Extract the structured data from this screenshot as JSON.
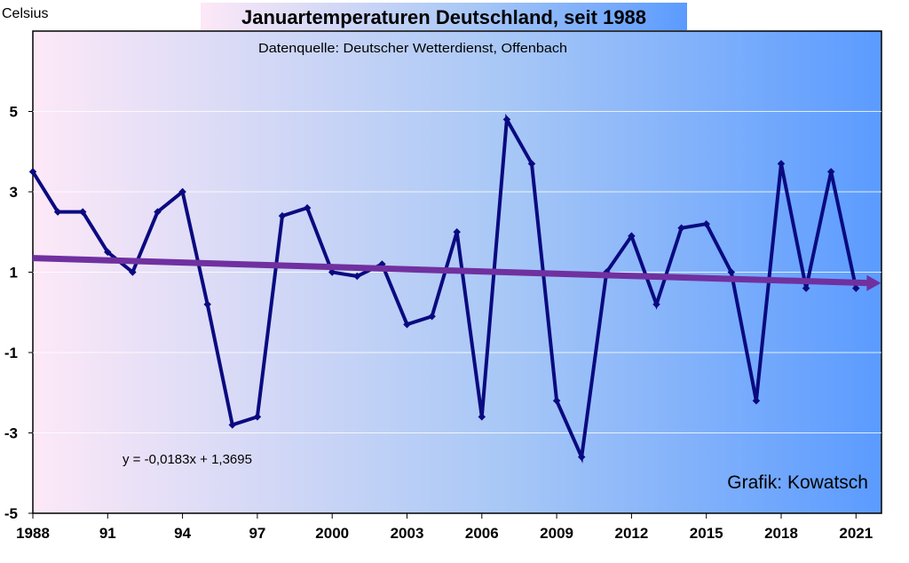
{
  "chart_data": {
    "type": "line",
    "title": "Januartemperaturen Deutschland, seit 1988",
    "subtitle": "Datenquelle: Deutscher Wetterdienst, Offenbach",
    "ylabel": "Celsius",
    "xlabel": "",
    "ylim": [
      -5,
      7
    ],
    "xlim": [
      1988,
      2022
    ],
    "y_ticks": [
      -5,
      -3,
      -1,
      1,
      3,
      5
    ],
    "x_ticks": [
      {
        "year": 1988,
        "label": "1988"
      },
      {
        "year": 1991,
        "label": "91"
      },
      {
        "year": 1994,
        "label": "94"
      },
      {
        "year": 1997,
        "label": "97"
      },
      {
        "year": 2000,
        "label": "2000"
      },
      {
        "year": 2003,
        "label": "2003"
      },
      {
        "year": 2006,
        "label": "2006"
      },
      {
        "year": 2009,
        "label": "2009"
      },
      {
        "year": 2012,
        "label": "2012"
      },
      {
        "year": 2015,
        "label": "2015"
      },
      {
        "year": 2018,
        "label": "2018"
      },
      {
        "year": 2021,
        "label": "2021"
      }
    ],
    "grid": "horizontal",
    "series": [
      {
        "x": [
          1988,
          1989,
          1990,
          1991,
          1992,
          1993,
          1994,
          1995,
          1996,
          1997,
          1998,
          1999,
          2000,
          2001,
          2002,
          2003,
          2004,
          2005,
          2006,
          2007,
          2008,
          2009,
          2010,
          2011,
          2012,
          2013,
          2014,
          2015,
          2016,
          2017,
          2018,
          2019,
          2020,
          2021
        ],
        "values": [
          3.5,
          2.5,
          2.5,
          1.5,
          1.0,
          2.5,
          3.0,
          0.2,
          -2.8,
          -2.6,
          2.4,
          2.6,
          1.0,
          0.9,
          1.2,
          -0.3,
          -0.1,
          2.0,
          -2.6,
          4.8,
          3.7,
          -2.2,
          -3.6,
          1.0,
          1.9,
          0.2,
          2.1,
          2.2,
          1.0,
          -2.2,
          3.7,
          0.6,
          3.5,
          0.6
        ],
        "color": "#0a0a80"
      }
    ],
    "trendline": {
      "equation": "y = -0,0183x + 1,3695",
      "slope": -0.0183,
      "intercept": 1.3695,
      "color": "#7030a0"
    },
    "annotations": {
      "credit": "Grafik: Kowatsch"
    },
    "colors": {
      "background_left": "#fde8f7",
      "background_right": "#5b9bff",
      "line": "#0a0a80",
      "trend": "#7030a0"
    }
  }
}
